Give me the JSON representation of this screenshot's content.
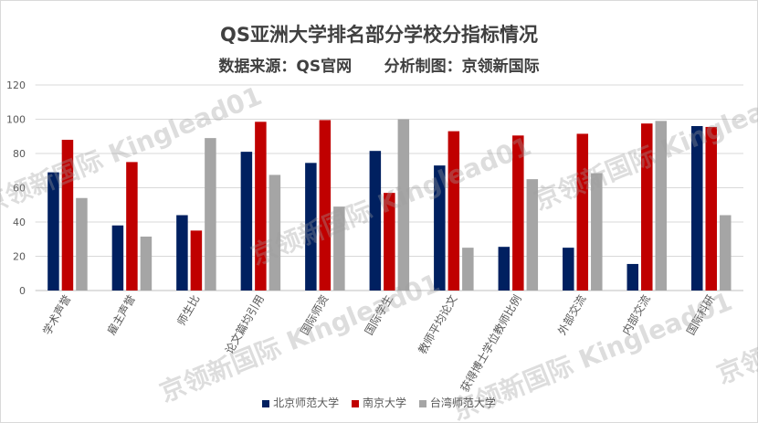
{
  "title": "QS亚洲大学排名部分学校分指标情况",
  "subtitle": "数据来源：QS官网      分析制图：京领新国际",
  "watermarks": [
    "京领新国际 Kinglead01"
  ],
  "chart_data": {
    "type": "bar",
    "title": "QS亚洲大学排名部分学校分指标情况",
    "categories": [
      "学术声誉",
      "雇主声誉",
      "师生比",
      "论文篇均引用",
      "国际师资",
      "国际学生",
      "教师平均论文",
      "获得博士学位教师比例",
      "外部交流",
      "内部交流",
      "国际科研"
    ],
    "series": [
      {
        "name": "北京师范大学",
        "color": "#002060",
        "values": [
          69,
          38,
          44,
          81,
          74.5,
          81.5,
          73,
          25.5,
          25,
          15.5,
          96
        ]
      },
      {
        "name": "南京大学",
        "color": "#c00000",
        "values": [
          88,
          75,
          35,
          98.5,
          99.5,
          57,
          93,
          90.5,
          91.5,
          97.5,
          95.5
        ]
      },
      {
        "name": "台湾师范大学",
        "color": "#a5a5a5",
        "values": [
          54,
          31.5,
          89,
          67.5,
          49,
          100,
          25,
          65,
          68.5,
          99,
          44
        ]
      }
    ],
    "ylim": [
      0,
      120
    ],
    "yticks": [
      "0",
      "20",
      "40",
      "60",
      "80",
      "100",
      "120"
    ],
    "grid": true,
    "legend": "bottom"
  }
}
